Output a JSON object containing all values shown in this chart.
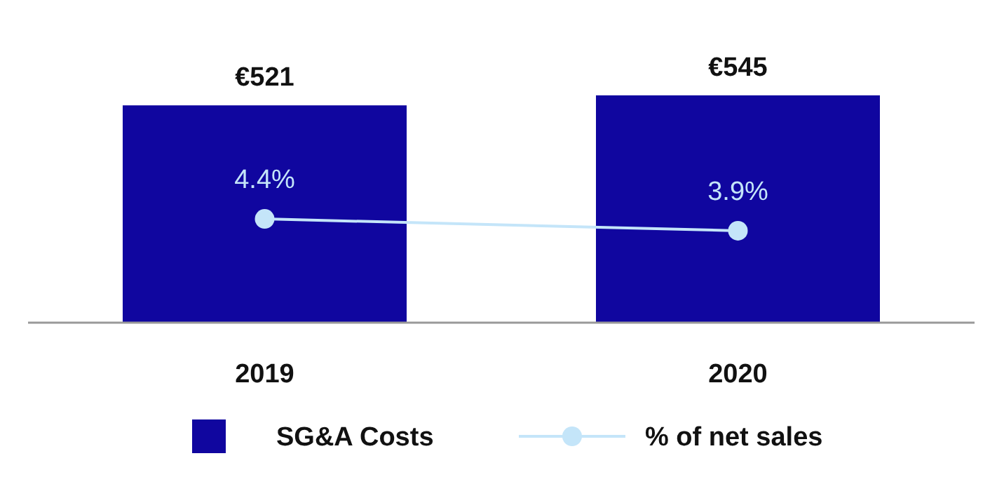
{
  "chart_data": {
    "type": "bar",
    "categories": [
      "2019",
      "2020"
    ],
    "tick_labels": "x",
    "legend": "bottom",
    "marker": "circle",
    "series": [
      {
        "name": "SG&A Costs",
        "color": "#10069f",
        "values": [
          521,
          545
        ],
        "value_labels": [
          "€521",
          "€545"
        ]
      },
      {
        "name": "% of net sales",
        "type": "line",
        "axis": "y2",
        "color": "#c4e5f9",
        "values": [
          4.4,
          3.9
        ],
        "value_labels": [
          "4.4%",
          "3.9%"
        ]
      }
    ]
  }
}
